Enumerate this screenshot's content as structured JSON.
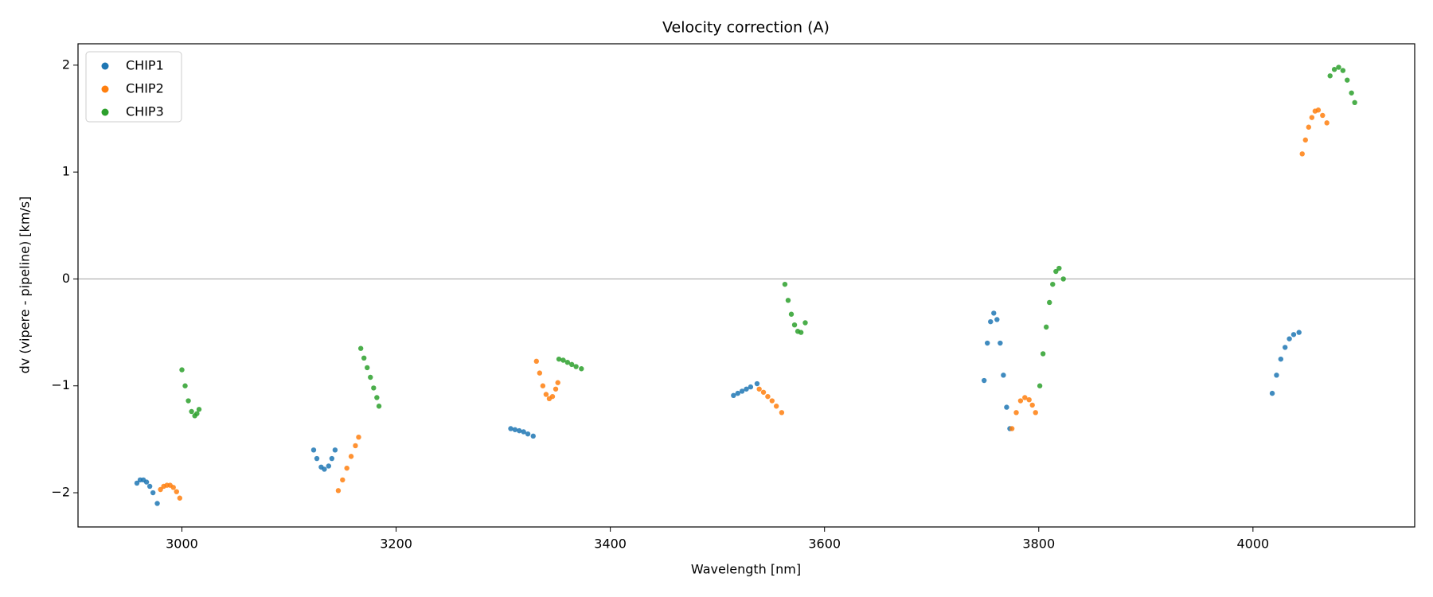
{
  "chart_data": {
    "type": "scatter",
    "title": "Velocity correction (A)",
    "x_label": "Wavelength [nm]",
    "y_label": "dv (vipere - pipeline) [km/s]",
    "xlim": [
      2903,
      4151
    ],
    "ylim": [
      -2.32,
      2.2
    ],
    "xticks": [
      3000,
      3200,
      3400,
      3600,
      3800,
      4000
    ],
    "yticks": [
      {
        "value": -2,
        "label": "−2"
      },
      {
        "value": -1,
        "label": "−1"
      },
      0,
      1,
      2
    ],
    "hline": 0,
    "legend": "upper left",
    "series": [
      {
        "name": "CHIP1",
        "color": "#1f77b4",
        "x": [
          2958,
          2961,
          2964,
          2967,
          2970,
          2973,
          2977,
          3123,
          3126,
          3130,
          3133,
          3137,
          3140,
          3143,
          3307,
          3311,
          3315,
          3319,
          3323,
          3328,
          3515,
          3519,
          3523,
          3527,
          3531,
          3537,
          3749,
          3752,
          3755,
          3758,
          3761,
          3764,
          3767,
          3770,
          3773,
          4018,
          4022,
          4026,
          4030,
          4034,
          4038,
          4043
        ],
        "values": [
          -1.91,
          -1.88,
          -1.88,
          -1.9,
          -1.94,
          -2.0,
          -2.1,
          -1.6,
          -1.68,
          -1.76,
          -1.78,
          -1.75,
          -1.68,
          -1.6,
          -1.4,
          -1.41,
          -1.42,
          -1.43,
          -1.45,
          -1.47,
          -1.09,
          -1.07,
          -1.05,
          -1.03,
          -1.01,
          -0.98,
          -0.95,
          -0.6,
          -0.4,
          -0.32,
          -0.38,
          -0.6,
          -0.9,
          -1.2,
          -1.4,
          -1.07,
          -0.9,
          -0.75,
          -0.64,
          -0.56,
          -0.52,
          -0.5
        ]
      },
      {
        "name": "CHIP2",
        "color": "#ff7f0e",
        "x": [
          2980,
          2983,
          2986,
          2989,
          2992,
          2995,
          2998,
          3146,
          3150,
          3154,
          3158,
          3162,
          3165,
          3331,
          3334,
          3337,
          3340,
          3343,
          3346,
          3349,
          3351,
          3539,
          3543,
          3547,
          3551,
          3555,
          3560,
          3775,
          3779,
          3783,
          3787,
          3791,
          3794,
          3797,
          4046,
          4049,
          4052,
          4055,
          4058,
          4061,
          4065,
          4069
        ],
        "values": [
          -1.97,
          -1.94,
          -1.93,
          -1.93,
          -1.95,
          -1.99,
          -2.05,
          -1.98,
          -1.88,
          -1.77,
          -1.66,
          -1.56,
          -1.48,
          -0.77,
          -0.88,
          -1.0,
          -1.08,
          -1.12,
          -1.1,
          -1.03,
          -0.97,
          -1.03,
          -1.06,
          -1.1,
          -1.14,
          -1.19,
          -1.25,
          -1.4,
          -1.25,
          -1.14,
          -1.11,
          -1.13,
          -1.18,
          -1.25,
          1.17,
          1.3,
          1.42,
          1.51,
          1.57,
          1.58,
          1.53,
          1.46
        ]
      },
      {
        "name": "CHIP3",
        "color": "#2ca02c",
        "x": [
          3000,
          3003,
          3006,
          3009,
          3012,
          3014,
          3016,
          3167,
          3170,
          3173,
          3176,
          3179,
          3182,
          3184,
          3352,
          3356,
          3360,
          3364,
          3368,
          3373,
          3563,
          3566,
          3569,
          3572,
          3575,
          3578,
          3582,
          3801,
          3804,
          3807,
          3810,
          3813,
          3816,
          3819,
          3823,
          4072,
          4076,
          4080,
          4084,
          4088,
          4092,
          4095
        ],
        "values": [
          -0.85,
          -1.0,
          -1.14,
          -1.24,
          -1.28,
          -1.26,
          -1.22,
          -0.65,
          -0.74,
          -0.83,
          -0.92,
          -1.02,
          -1.11,
          -1.19,
          -0.75,
          -0.76,
          -0.78,
          -0.8,
          -0.82,
          -0.84,
          -0.05,
          -0.2,
          -0.33,
          -0.43,
          -0.49,
          -0.5,
          -0.41,
          -1.0,
          -0.7,
          -0.45,
          -0.22,
          -0.05,
          0.07,
          0.1,
          0.0,
          1.9,
          1.96,
          1.98,
          1.95,
          1.86,
          1.74,
          1.65
        ]
      }
    ]
  }
}
